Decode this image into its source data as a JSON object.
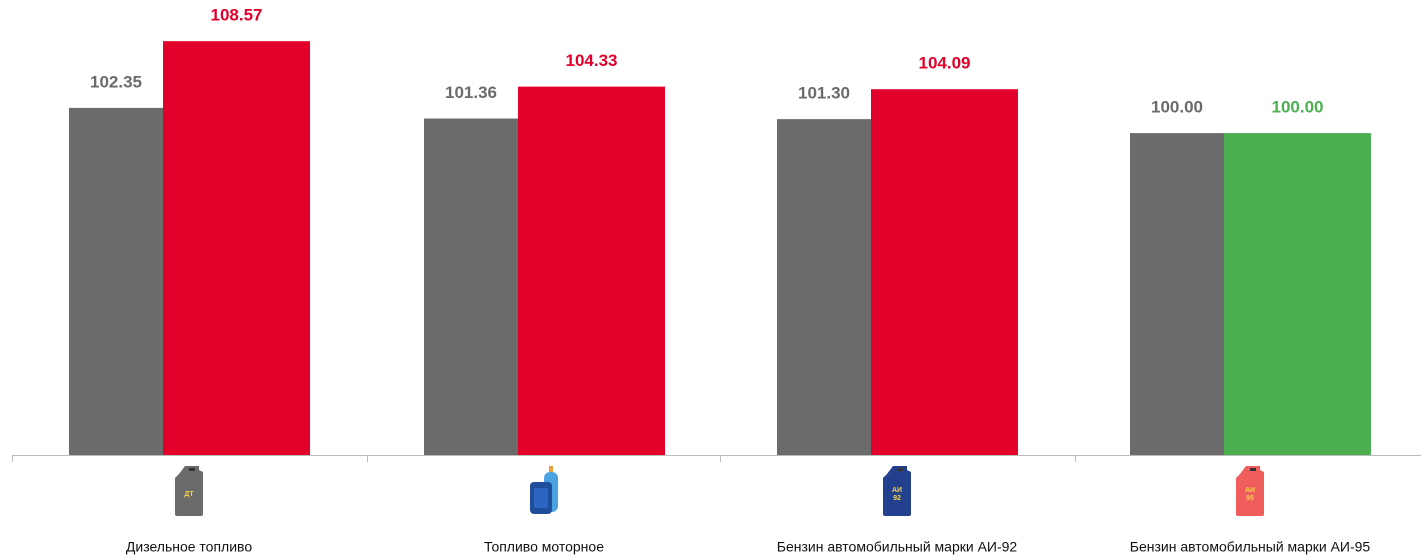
{
  "chart_data": {
    "type": "bar",
    "categories": [
      "Дизельное топливо",
      "Топливо моторное",
      "Бензин автомобильный марки АИ-92",
      "Бензин автомобильный марки АИ-95"
    ],
    "icon_labels": [
      [
        "ДТ"
      ],
      [],
      [
        "АИ",
        "92"
      ],
      [
        "АИ",
        "95"
      ]
    ],
    "series": [
      {
        "color": "#6b6b6b",
        "values": [
          102.35,
          101.36,
          101.3,
          100
        ],
        "value_labels": [
          "102.35",
          "101.36",
          "101.30",
          "100.00"
        ]
      },
      {
        "colors": [
          "#e2002b",
          "#e2002b",
          "#e2002b",
          "#4caf50"
        ],
        "values": [
          108.57,
          104.33,
          104.09,
          100
        ],
        "value_labels": [
          "108.57",
          "104.33",
          "104.09",
          "100.00"
        ]
      }
    ],
    "ylim": [
      70,
      110
    ]
  }
}
